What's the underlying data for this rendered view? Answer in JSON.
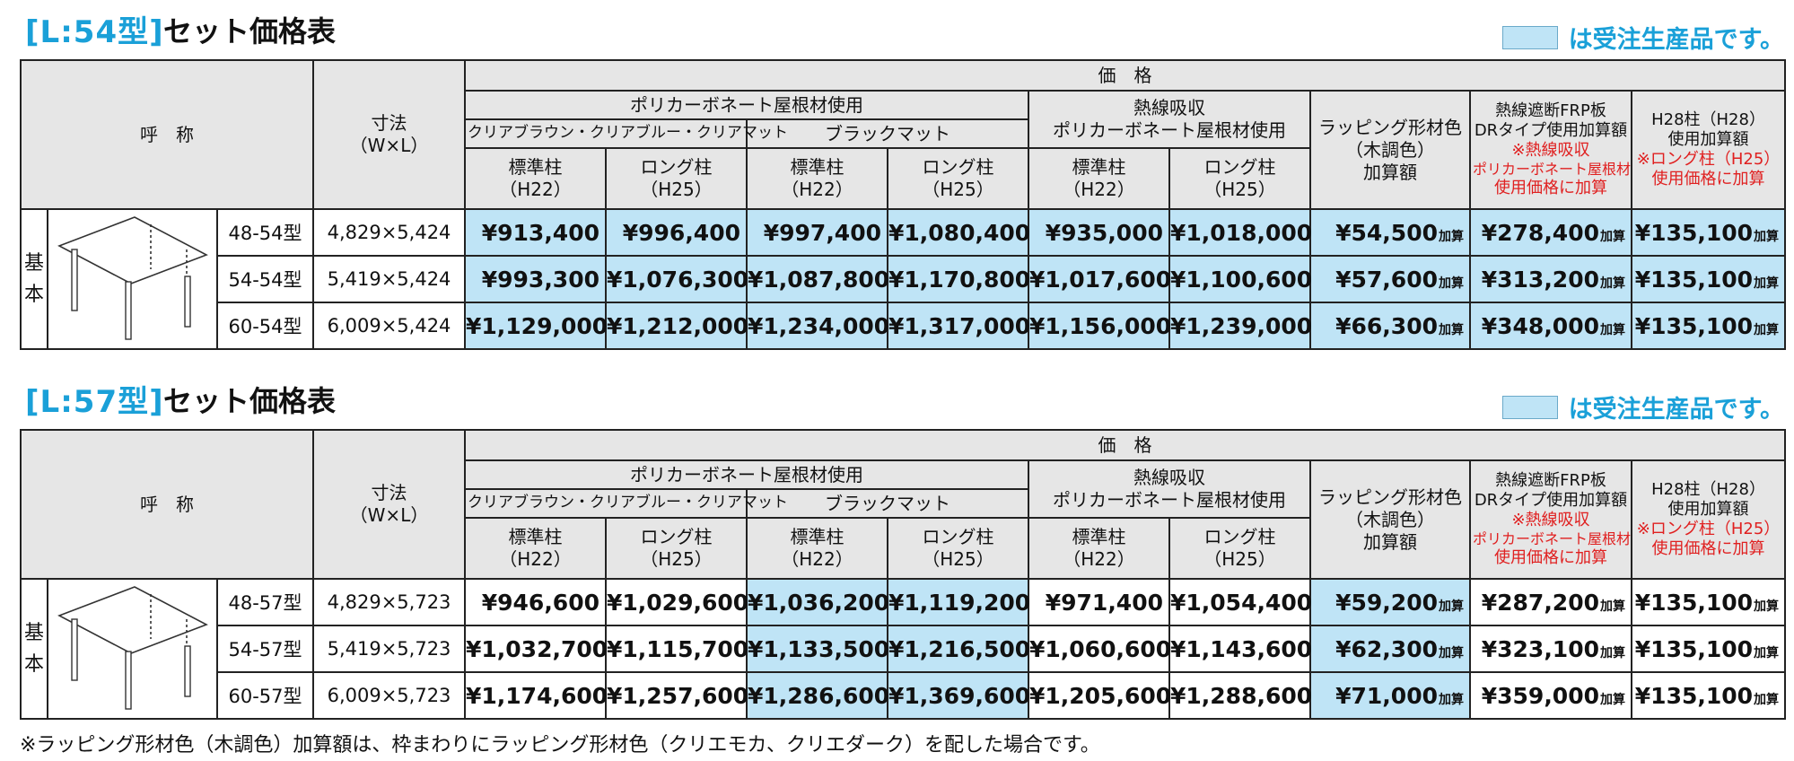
{
  "legend_text": "は受注生産品です。",
  "headers": {
    "yobi": "呼　称",
    "size_line1": "寸法",
    "size_line2": "（W×L）",
    "price": "価　格",
    "polycarbonate": "ポリカーボネート屋根材使用",
    "clear_colors": "クリアブラウン・クリアブルー・クリアマット",
    "black_matte": "ブラックマット",
    "heat_line1": "熱線吸収",
    "heat_line2": "ポリカーボネート屋根材使用",
    "std_line1": "標準柱",
    "std_line2": "（H22）",
    "long_line1": "ロング柱",
    "long_line2": "（H25）",
    "wrap_line1": "ラッピング形材色",
    "wrap_line2": "（木調色）",
    "wrap_line3": "加算額",
    "frp_line1": "熱線遮断FRP板",
    "frp_line2": "DRタイプ使用加算額",
    "frp_note1": "※熱線吸収",
    "frp_note2": "ポリカーボネート屋根材",
    "frp_note3": "使用価格に加算",
    "h28_line1": "H28柱（H28）",
    "h28_line2": "使用加算額",
    "h28_note1": "※ロング柱（H25）",
    "h28_note2": "使用価格に加算"
  },
  "kihon_chars": [
    "基",
    "本"
  ],
  "add_label": "加算",
  "tables": [
    {
      "model": "[L:54型]",
      "title": "セット価格表",
      "rows": [
        {
          "name": "48-54型",
          "size": "4,829×5,424",
          "std": "¥913,400",
          "long": "¥996,400",
          "bstd": "¥997,400",
          "blong": "¥1,080,400",
          "hstd": "¥935,000",
          "hlong": "¥1,018,000",
          "wrap": "¥54,500",
          "frp": "¥278,400",
          "h28": "¥135,100"
        },
        {
          "name": "54-54型",
          "size": "5,419×5,424",
          "std": "¥993,300",
          "long": "¥1,076,300",
          "bstd": "¥1,087,800",
          "blong": "¥1,170,800",
          "hstd": "¥1,017,600",
          "hlong": "¥1,100,600",
          "wrap": "¥57,600",
          "frp": "¥313,200",
          "h28": "¥135,100"
        },
        {
          "name": "60-54型",
          "size": "6,009×5,424",
          "std": "¥1,129,000",
          "long": "¥1,212,000",
          "bstd": "¥1,234,000",
          "blong": "¥1,317,000",
          "hstd": "¥1,156,000",
          "hlong": "¥1,239,000",
          "wrap": "¥66,300",
          "frp": "¥348,000",
          "h28": "¥135,100"
        }
      ]
    },
    {
      "model": "[L:57型]",
      "title": "セット価格表",
      "rows": [
        {
          "name": "48-57型",
          "size": "4,829×5,723",
          "std": "¥946,600",
          "long": "¥1,029,600",
          "bstd": "¥1,036,200",
          "blong": "¥1,119,200",
          "hstd": "¥971,400",
          "hlong": "¥1,054,400",
          "wrap": "¥59,200",
          "frp": "¥287,200",
          "h28": "¥135,100"
        },
        {
          "name": "54-57型",
          "size": "5,419×5,723",
          "std": "¥1,032,700",
          "long": "¥1,115,700",
          "bstd": "¥1,133,500",
          "blong": "¥1,216,500",
          "hstd": "¥1,060,600",
          "hlong": "¥1,143,600",
          "wrap": "¥62,300",
          "frp": "¥323,100",
          "h28": "¥135,100"
        },
        {
          "name": "60-57型",
          "size": "6,009×5,723",
          "std": "¥1,174,600",
          "long": "¥1,257,600",
          "bstd": "¥1,286,600",
          "blong": "¥1,369,600",
          "hstd": "¥1,205,600",
          "hlong": "¥1,288,600",
          "wrap": "¥71,000",
          "frp": "¥359,000",
          "h28": "¥135,100"
        }
      ]
    }
  ],
  "footnote": "※ラッピング形材色（木調色）加算額は、枠まわりにラッピング形材色（クリエモカ、クリエダーク）を配した場合です。"
}
